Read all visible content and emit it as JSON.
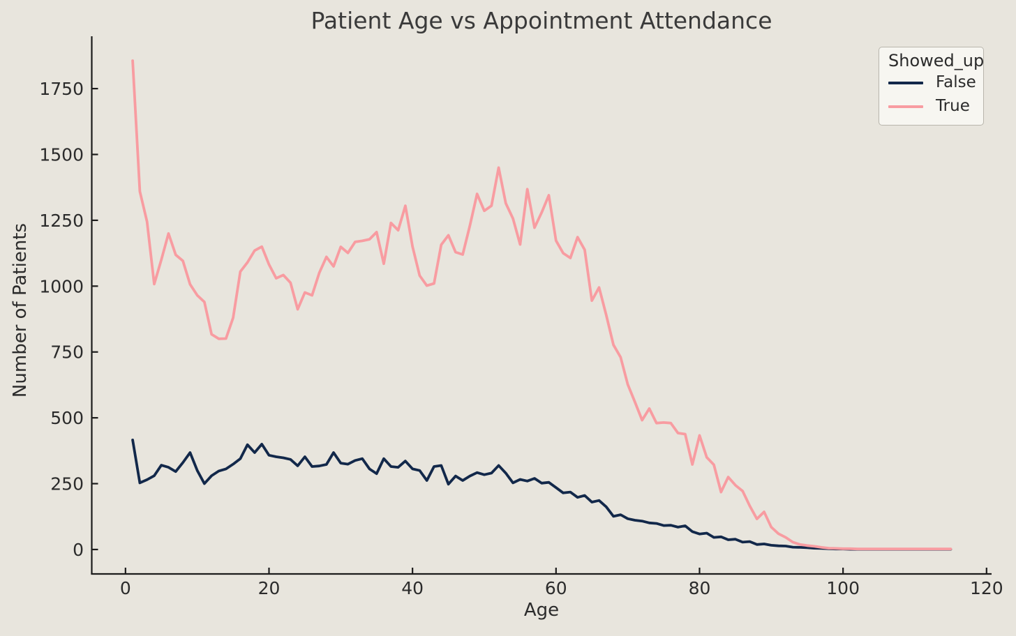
{
  "figure": {
    "background_color": "#E8E5DD",
    "text_color": "#2B2B2B",
    "spine_color": "#1C1C1C"
  },
  "chart_data": {
    "type": "line",
    "title": "Patient Age vs Appointment Attendance",
    "xlabel": "Age",
    "ylabel": "Number of Patients",
    "x_ticks": [
      0,
      20,
      40,
      60,
      80,
      100,
      120
    ],
    "y_ticks": [
      0,
      250,
      500,
      750,
      1000,
      1250,
      1500,
      1750
    ],
    "xlim": [
      -4.7,
      120.7
    ],
    "ylim": [
      -92.8,
      1948.8
    ],
    "grid": false,
    "legend": {
      "title": "Showed_up",
      "position": "upper right",
      "face_color": "#F7F6F1",
      "edge_color": "#B8B5AC",
      "entries": [
        {
          "label": "False",
          "color": "#12284A"
        },
        {
          "label": "True",
          "color": "#F89CA1"
        }
      ]
    },
    "x": [
      1,
      2,
      3,
      4,
      5,
      6,
      7,
      8,
      9,
      10,
      11,
      12,
      13,
      14,
      15,
      16,
      17,
      18,
      19,
      20,
      21,
      22,
      23,
      24,
      25,
      26,
      27,
      28,
      29,
      30,
      31,
      32,
      33,
      34,
      35,
      36,
      37,
      38,
      39,
      40,
      41,
      42,
      43,
      44,
      45,
      46,
      47,
      48,
      49,
      50,
      51,
      52,
      53,
      54,
      55,
      56,
      57,
      58,
      59,
      60,
      61,
      62,
      63,
      64,
      65,
      66,
      67,
      68,
      69,
      70,
      71,
      72,
      73,
      74,
      75,
      76,
      77,
      78,
      79,
      80,
      81,
      82,
      83,
      84,
      85,
      86,
      87,
      88,
      89,
      90,
      91,
      92,
      93,
      94,
      95,
      96,
      97,
      98,
      99,
      100,
      101,
      102,
      103,
      104,
      105,
      106,
      107,
      108,
      109,
      110,
      111,
      112,
      113,
      114,
      115
    ],
    "series": [
      {
        "name": "False",
        "color": "#12284A",
        "values": [
          416,
          253,
          265,
          280,
          320,
          312,
          296,
          330,
          368,
          300,
          250,
          280,
          298,
          306,
          324,
          345,
          398,
          368,
          400,
          358,
          352,
          348,
          342,
          318,
          352,
          315,
          317,
          323,
          368,
          328,
          324,
          338,
          345,
          306,
          288,
          345,
          315,
          312,
          336,
          306,
          300,
          262,
          315,
          319,
          248,
          279,
          262,
          279,
          292,
          284,
          290,
          319,
          290,
          253,
          266,
          260,
          270,
          252,
          255,
          235,
          215,
          218,
          198,
          205,
          180,
          186,
          162,
          126,
          132,
          117,
          111,
          108,
          101,
          99,
          91,
          92,
          85,
          90,
          68,
          59,
          62,
          46,
          48,
          37,
          39,
          28,
          30,
          19,
          21,
          16,
          14,
          13,
          9,
          8,
          7,
          5,
          4,
          3,
          2,
          2,
          1,
          1,
          1,
          1,
          1,
          1,
          1,
          1,
          1,
          1,
          1,
          1,
          1,
          1,
          1
        ]
      },
      {
        "name": "True",
        "color": "#F89CA1",
        "values": [
          1856,
          1360,
          1245,
          1008,
          1100,
          1200,
          1119,
          1096,
          1007,
          965,
          940,
          817,
          800,
          801,
          880,
          1055,
          1090,
          1135,
          1150,
          1082,
          1030,
          1042,
          1013,
          912,
          976,
          965,
          1050,
          1111,
          1075,
          1149,
          1126,
          1168,
          1172,
          1178,
          1205,
          1085,
          1240,
          1212,
          1305,
          1150,
          1040,
          1002,
          1010,
          1157,
          1193,
          1129,
          1120,
          1230,
          1350,
          1286,
          1305,
          1450,
          1315,
          1257,
          1158,
          1368,
          1222,
          1280,
          1345,
          1173,
          1125,
          1107,
          1186,
          1138,
          945,
          995,
          890,
          777,
          730,
          627,
          560,
          491,
          535,
          480,
          482,
          480,
          442,
          438,
          323,
          433,
          350,
          322,
          218,
          275,
          244,
          222,
          165,
          116,
          143,
          85,
          60,
          46,
          28,
          19,
          15,
          12,
          8,
          5,
          4,
          3,
          3,
          2,
          2,
          2,
          2,
          2,
          2,
          2,
          2,
          2,
          2,
          2,
          2,
          2,
          2
        ]
      }
    ]
  }
}
